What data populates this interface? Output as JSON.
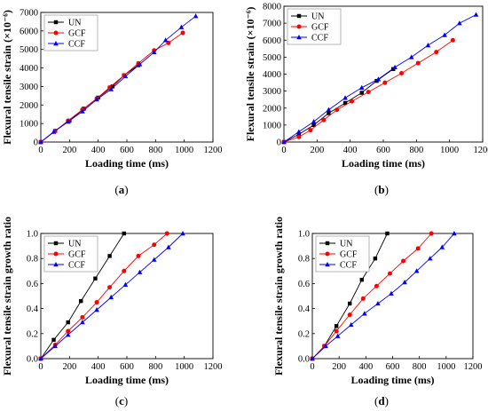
{
  "colors": {
    "UN": "#000000",
    "GCF": "#ff0000",
    "CCF": "#0000ff"
  },
  "chart_data": [
    {
      "panel": "a",
      "label_prefix": "(",
      "label_letter": "a",
      "label_suffix": ")",
      "type": "line",
      "xlabel": "Loading time (ms)",
      "ylabel": "Flexural tensile strain (×10⁻⁶)",
      "xlim": [
        0,
        1200
      ],
      "ylim": [
        0,
        7000
      ],
      "xticks": [
        "0",
        "200",
        "400",
        "600",
        "800",
        "1000",
        "1200"
      ],
      "yticks": [
        "0",
        "1000",
        "2000",
        "3000",
        "4000",
        "5000",
        "6000",
        "7000"
      ],
      "legend_position": "top-left",
      "series": [
        {
          "name": "UN",
          "marker": "square",
          "color": "#000000",
          "x": [
            0,
            100,
            200,
            300,
            400,
            500,
            580,
            680
          ],
          "y": [
            0,
            600,
            1150,
            1800,
            2400,
            3000,
            3600,
            4150
          ]
        },
        {
          "name": "GCF",
          "marker": "circle",
          "color": "#ff0000",
          "x": [
            0,
            100,
            190,
            290,
            390,
            480,
            580,
            680,
            790,
            890,
            990
          ],
          "y": [
            0,
            600,
            1150,
            1750,
            2350,
            2950,
            3600,
            4250,
            4950,
            5350,
            5900
          ]
        },
        {
          "name": "CCF",
          "marker": "triangle",
          "color": "#0000ff",
          "x": [
            0,
            90,
            190,
            290,
            390,
            490,
            590,
            690,
            790,
            870,
            980,
            1080
          ],
          "y": [
            0,
            550,
            1100,
            1650,
            2300,
            2850,
            3550,
            4200,
            4850,
            5500,
            6200,
            6800
          ]
        }
      ]
    },
    {
      "panel": "b",
      "label_prefix": "(",
      "label_letter": "b",
      "label_suffix": ")",
      "type": "line",
      "xlabel": "Loading time (ms)",
      "ylabel": "Flexural tensile strain (×10⁻⁶)",
      "xlim": [
        0,
        1200
      ],
      "ylim": [
        0,
        8000
      ],
      "xticks": [
        "0",
        "200",
        "400",
        "600",
        "800",
        "1000",
        "1200"
      ],
      "yticks": [
        "0",
        "1000",
        "2000",
        "3000",
        "4000",
        "5000",
        "6000",
        "7000",
        "8000"
      ],
      "legend_position": "top-left",
      "series": [
        {
          "name": "UN",
          "marker": "square",
          "color": "#000000",
          "x": [
            0,
            90,
            180,
            270,
            370,
            470,
            560,
            660
          ],
          "y": [
            0,
            450,
            1000,
            1700,
            2300,
            2900,
            3600,
            4300
          ]
        },
        {
          "name": "GCF",
          "marker": "circle",
          "color": "#ff0000",
          "x": [
            0,
            90,
            160,
            240,
            320,
            410,
            510,
            610,
            710,
            810,
            920,
            1020
          ],
          "y": [
            0,
            300,
            700,
            1300,
            1900,
            2400,
            2950,
            3500,
            4050,
            4650,
            5300,
            6000
          ]
        },
        {
          "name": "CCF",
          "marker": "triangle",
          "color": "#0000ff",
          "x": [
            0,
            90,
            180,
            270,
            370,
            470,
            570,
            670,
            770,
            870,
            970,
            1060,
            1160
          ],
          "y": [
            0,
            600,
            1200,
            1900,
            2600,
            3200,
            3700,
            4400,
            5000,
            5700,
            6300,
            7000,
            7500
          ]
        }
      ]
    },
    {
      "panel": "c",
      "label_prefix": "(",
      "label_letter": "c",
      "label_suffix": ")",
      "type": "line",
      "xlabel": "Loading time (ms)",
      "ylabel": "Flexural tensile strain growth ratio",
      "xlim": [
        0,
        1200
      ],
      "ylim": [
        0,
        1.0
      ],
      "xticks": [
        "0",
        "200",
        "400",
        "600",
        "800",
        "1000",
        "1200"
      ],
      "yticks": [
        "0.0",
        "0.2",
        "0.4",
        "0.6",
        "0.8",
        "1.0"
      ],
      "legend_position": "top-left",
      "series": [
        {
          "name": "UN",
          "marker": "square",
          "color": "#000000",
          "x": [
            0,
            90,
            190,
            280,
            380,
            480,
            580
          ],
          "y": [
            0,
            0.15,
            0.29,
            0.46,
            0.64,
            0.82,
            1.0
          ]
        },
        {
          "name": "GCF",
          "marker": "circle",
          "color": "#ff0000",
          "x": [
            0,
            100,
            190,
            290,
            390,
            480,
            580,
            680,
            790,
            880
          ],
          "y": [
            0,
            0.11,
            0.22,
            0.33,
            0.45,
            0.57,
            0.7,
            0.82,
            0.91,
            1.0
          ]
        },
        {
          "name": "CCF",
          "marker": "triangle",
          "color": "#0000ff",
          "x": [
            0,
            100,
            190,
            290,
            390,
            490,
            590,
            690,
            790,
            890,
            990
          ],
          "y": [
            0,
            0.1,
            0.19,
            0.29,
            0.39,
            0.49,
            0.59,
            0.69,
            0.79,
            0.89,
            1.0
          ]
        }
      ]
    },
    {
      "panel": "d",
      "label_prefix": "(",
      "label_letter": "d",
      "label_suffix": ")",
      "type": "line",
      "xlabel": "Loading time (ms)",
      "ylabel": "Flexural tensile strain growth ratio",
      "xlim": [
        0,
        1200
      ],
      "ylim": [
        0,
        1.0
      ],
      "xticks": [
        "0",
        "200",
        "400",
        "600",
        "800",
        "1000",
        "1200"
      ],
      "yticks": [
        "0.0",
        "0.2",
        "0.4",
        "0.6",
        "0.8",
        "1.0"
      ],
      "legend_position": "top-left",
      "series": [
        {
          "name": "UN",
          "marker": "square",
          "color": "#000000",
          "x": [
            0,
            90,
            180,
            280,
            370,
            470,
            560
          ],
          "y": [
            0,
            0.1,
            0.26,
            0.44,
            0.63,
            0.8,
            1.0
          ]
        },
        {
          "name": "GCF",
          "marker": "circle",
          "color": "#ff0000",
          "x": [
            0,
            90,
            180,
            280,
            380,
            480,
            580,
            680,
            790,
            890
          ],
          "y": [
            0,
            0.1,
            0.22,
            0.35,
            0.48,
            0.58,
            0.68,
            0.78,
            0.88,
            1.0
          ]
        },
        {
          "name": "CCF",
          "marker": "triangle",
          "color": "#0000ff",
          "x": [
            0,
            100,
            190,
            290,
            390,
            490,
            590,
            690,
            780,
            880,
            970,
            1060
          ],
          "y": [
            0,
            0.1,
            0.18,
            0.27,
            0.36,
            0.44,
            0.52,
            0.61,
            0.7,
            0.8,
            0.89,
            1.0
          ]
        }
      ]
    }
  ]
}
